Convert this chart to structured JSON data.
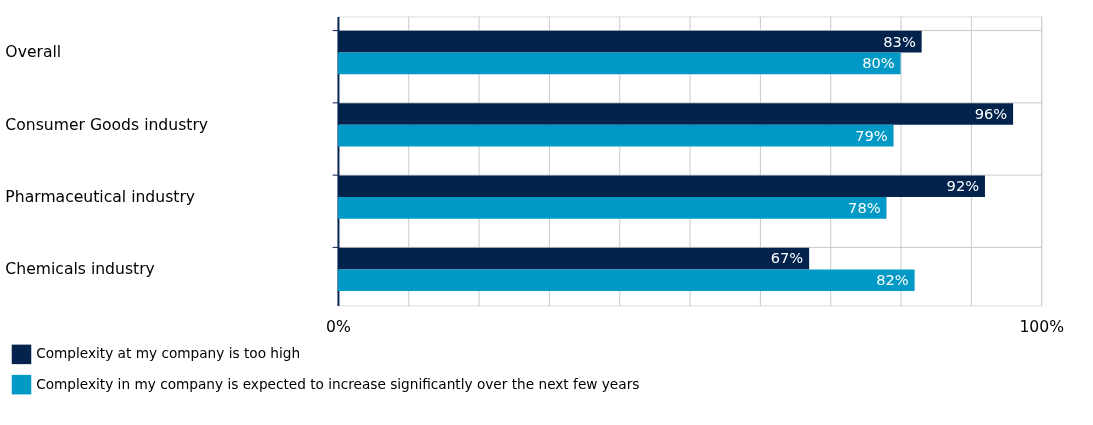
{
  "chart_data": {
    "type": "bar",
    "orientation": "horizontal",
    "categories": [
      "Overall",
      "Consumer Goods industry",
      "Pharmaceutical industry",
      "Chemicals industry"
    ],
    "series": [
      {
        "name": "Complexity at my company is too high",
        "color": "#03224c",
        "values": [
          83,
          96,
          92,
          67
        ],
        "value_labels": [
          "83%",
          "96%",
          "92%",
          "67%"
        ]
      },
      {
        "name": "Complexity in my company is expected to increase significantly over the next few years",
        "color": "#0099c6",
        "values": [
          80,
          79,
          78,
          82
        ],
        "value_labels": [
          "80%",
          "79%",
          "78%",
          "82%"
        ]
      }
    ],
    "xlim": [
      0,
      100
    ],
    "xticks": [
      {
        "value": 0,
        "label": "0%"
      },
      {
        "value": 10,
        "label": null
      },
      {
        "value": 20,
        "label": null
      },
      {
        "value": 30,
        "label": null
      },
      {
        "value": 40,
        "label": null
      },
      {
        "value": 50,
        "label": null
      },
      {
        "value": 60,
        "label": null
      },
      {
        "value": 70,
        "label": null
      },
      {
        "value": 80,
        "label": null
      },
      {
        "value": 90,
        "label": null
      },
      {
        "value": 100,
        "label": "100%"
      }
    ],
    "grid": true,
    "legend": "bottom"
  }
}
